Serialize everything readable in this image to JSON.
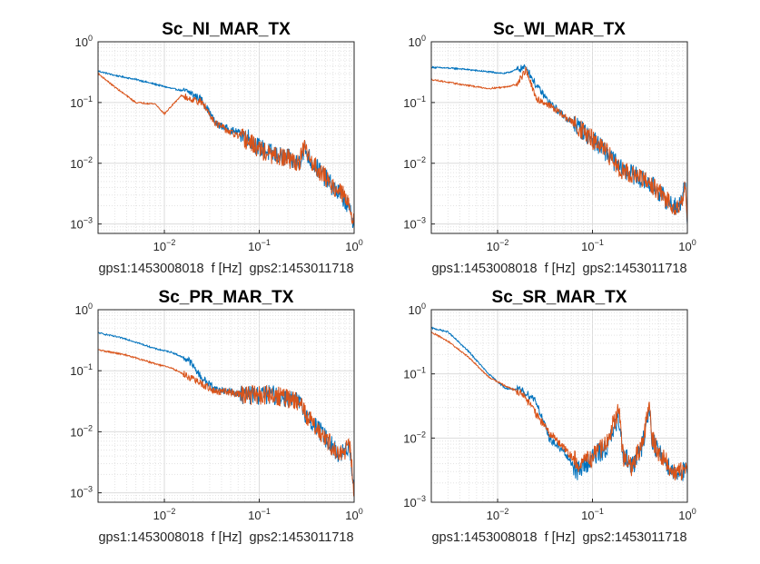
{
  "chart_data": [
    {
      "type": "line",
      "title": "Sc_NI_MAR_TX",
      "xlabel": "gps1:1453008018  f [Hz]  gps2:1453011718",
      "xscale": "log",
      "yscale": "log",
      "xlim": [
        0.002,
        1
      ],
      "ylim": [
        0.0007,
        1
      ],
      "grid": true,
      "minor_grid": true,
      "xticks": [
        "10^-2",
        "10^-1",
        "10^0"
      ],
      "yticks": [
        "10^-3",
        "10^-2",
        "10^-1",
        "10^0"
      ],
      "series": [
        {
          "color": "#0072BD",
          "x": [
            0.002,
            0.003,
            0.005,
            0.008,
            0.012,
            0.018,
            0.025,
            0.035,
            0.05,
            0.07,
            0.1,
            0.14,
            0.2,
            0.26,
            0.3,
            0.35,
            0.45,
            0.6,
            0.8,
            1.0
          ],
          "y": [
            0.33,
            0.28,
            0.24,
            0.2,
            0.17,
            0.15,
            0.11,
            0.045,
            0.035,
            0.03,
            0.018,
            0.014,
            0.012,
            0.01,
            0.018,
            0.011,
            0.007,
            0.004,
            0.0025,
            0.0011
          ]
        },
        {
          "color": "#D95319",
          "x": [
            0.002,
            0.003,
            0.005,
            0.008,
            0.01,
            0.015,
            0.025,
            0.035,
            0.05,
            0.07,
            0.1,
            0.14,
            0.2,
            0.26,
            0.3,
            0.35,
            0.45,
            0.6,
            0.8,
            1.0
          ],
          "y": [
            0.3,
            0.18,
            0.1,
            0.095,
            0.065,
            0.13,
            0.1,
            0.045,
            0.032,
            0.025,
            0.017,
            0.013,
            0.012,
            0.01,
            0.018,
            0.011,
            0.007,
            0.0042,
            0.0028,
            0.0012
          ]
        }
      ]
    },
    {
      "type": "line",
      "title": "Sc_WI_MAR_TX",
      "xlabel": "gps1:1453008018  f [Hz]  gps2:1453011718",
      "xscale": "log",
      "yscale": "log",
      "xlim": [
        0.002,
        1
      ],
      "ylim": [
        0.0007,
        1
      ],
      "grid": true,
      "minor_grid": true,
      "xticks": [
        "10^-2",
        "10^-1",
        "10^0"
      ],
      "yticks": [
        "10^-3",
        "10^-2",
        "10^-1",
        "10^0"
      ],
      "series": [
        {
          "color": "#0072BD",
          "x": [
            0.002,
            0.004,
            0.008,
            0.012,
            0.016,
            0.02,
            0.025,
            0.035,
            0.05,
            0.07,
            0.1,
            0.14,
            0.2,
            0.3,
            0.45,
            0.6,
            0.8,
            0.95,
            1.0
          ],
          "y": [
            0.38,
            0.36,
            0.32,
            0.3,
            0.35,
            0.38,
            0.2,
            0.1,
            0.06,
            0.04,
            0.025,
            0.015,
            0.008,
            0.006,
            0.004,
            0.0025,
            0.0018,
            0.004,
            0.0012
          ]
        },
        {
          "color": "#D95319",
          "x": [
            0.002,
            0.004,
            0.008,
            0.012,
            0.016,
            0.02,
            0.025,
            0.035,
            0.05,
            0.07,
            0.1,
            0.14,
            0.2,
            0.3,
            0.45,
            0.6,
            0.8,
            0.95,
            1.0
          ],
          "y": [
            0.24,
            0.2,
            0.17,
            0.18,
            0.2,
            0.35,
            0.12,
            0.09,
            0.06,
            0.04,
            0.024,
            0.015,
            0.008,
            0.006,
            0.004,
            0.0025,
            0.0018,
            0.004,
            0.0012
          ]
        }
      ]
    },
    {
      "type": "line",
      "title": "Sc_PR_MAR_TX",
      "xlabel": "gps1:1453008018  f [Hz]  gps2:1453011718",
      "xscale": "log",
      "yscale": "log",
      "xlim": [
        0.002,
        1
      ],
      "ylim": [
        0.0007,
        1
      ],
      "grid": true,
      "minor_grid": true,
      "xticks": [
        "10^-2",
        "10^-1",
        "10^0"
      ],
      "yticks": [
        "10^-3",
        "10^-2",
        "10^-1",
        "10^0"
      ],
      "series": [
        {
          "color": "#0072BD",
          "x": [
            0.002,
            0.004,
            0.008,
            0.012,
            0.018,
            0.025,
            0.035,
            0.05,
            0.07,
            0.1,
            0.14,
            0.2,
            0.26,
            0.35,
            0.5,
            0.7,
            0.9,
            1.0
          ],
          "y": [
            0.42,
            0.33,
            0.23,
            0.2,
            0.15,
            0.075,
            0.05,
            0.045,
            0.04,
            0.04,
            0.04,
            0.035,
            0.03,
            0.015,
            0.008,
            0.004,
            0.006,
            0.001
          ]
        },
        {
          "color": "#D95319",
          "x": [
            0.002,
            0.004,
            0.008,
            0.012,
            0.018,
            0.025,
            0.035,
            0.05,
            0.07,
            0.1,
            0.14,
            0.2,
            0.26,
            0.35,
            0.5,
            0.7,
            0.9,
            1.0
          ],
          "y": [
            0.22,
            0.18,
            0.13,
            0.11,
            0.08,
            0.06,
            0.045,
            0.045,
            0.04,
            0.04,
            0.04,
            0.035,
            0.03,
            0.015,
            0.008,
            0.004,
            0.006,
            0.001
          ]
        }
      ]
    },
    {
      "type": "line",
      "title": "Sc_SR_MAR_TX",
      "xlabel": "gps1:1453008018  f [Hz]  gps2:1453011718",
      "xscale": "log",
      "yscale": "log",
      "xlim": [
        0.002,
        1
      ],
      "ylim": [
        0.001,
        1
      ],
      "grid": true,
      "minor_grid": true,
      "xticks": [
        "10^-2",
        "10^-1",
        "10^0"
      ],
      "yticks": [
        "10^-3",
        "10^-2",
        "10^-1",
        "10^0"
      ],
      "series": [
        {
          "color": "#0072BD",
          "x": [
            0.002,
            0.003,
            0.005,
            0.008,
            0.012,
            0.018,
            0.025,
            0.035,
            0.05,
            0.07,
            0.1,
            0.14,
            0.19,
            0.21,
            0.26,
            0.33,
            0.4,
            0.42,
            0.5,
            0.7,
            1.0
          ],
          "y": [
            0.52,
            0.45,
            0.22,
            0.1,
            0.06,
            0.055,
            0.04,
            0.01,
            0.006,
            0.003,
            0.005,
            0.007,
            0.02,
            0.006,
            0.0035,
            0.007,
            0.03,
            0.01,
            0.006,
            0.003,
            0.003
          ]
        },
        {
          "color": "#D95319",
          "x": [
            0.002,
            0.003,
            0.005,
            0.008,
            0.012,
            0.018,
            0.025,
            0.035,
            0.05,
            0.07,
            0.1,
            0.14,
            0.19,
            0.21,
            0.26,
            0.33,
            0.4,
            0.42,
            0.5,
            0.7,
            1.0
          ],
          "y": [
            0.45,
            0.32,
            0.18,
            0.09,
            0.065,
            0.05,
            0.025,
            0.012,
            0.007,
            0.004,
            0.005,
            0.008,
            0.03,
            0.005,
            0.0035,
            0.008,
            0.03,
            0.01,
            0.006,
            0.003,
            0.003
          ]
        }
      ]
    }
  ]
}
